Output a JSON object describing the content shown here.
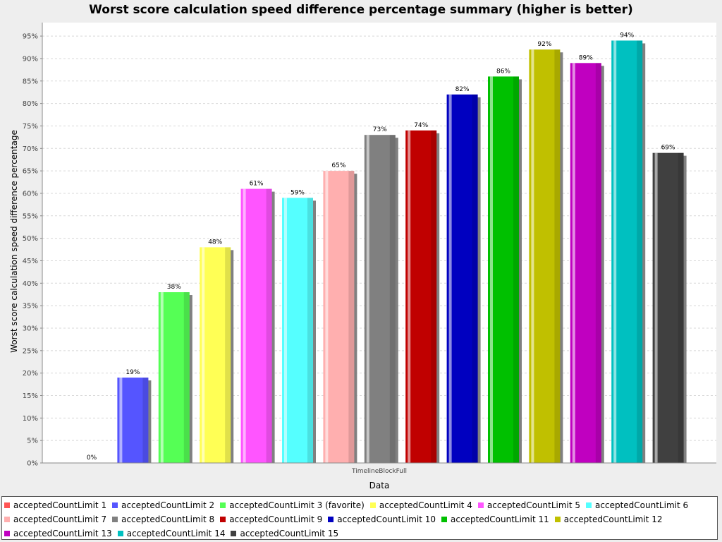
{
  "chart_data": {
    "type": "bar",
    "title": "Worst score calculation speed difference percentage summary (higher is better)",
    "xlabel": "Data",
    "ylabel": "Worst score calculation speed difference percentage",
    "categories": [
      "TimelineBlockFull"
    ],
    "ylim": [
      0,
      98
    ],
    "yticks": [
      "0%",
      "5%",
      "10%",
      "15%",
      "20%",
      "25%",
      "30%",
      "35%",
      "40%",
      "45%",
      "50%",
      "55%",
      "60%",
      "65%",
      "70%",
      "75%",
      "80%",
      "85%",
      "90%",
      "95%"
    ],
    "grid": true,
    "legend_position": "bottom",
    "series": [
      {
        "name": "acceptedCountLimit 1",
        "values": [
          0
        ],
        "label": "0%",
        "color": "#ff5555"
      },
      {
        "name": "acceptedCountLimit 2",
        "values": [
          19
        ],
        "label": "19%",
        "color": "#5555ff"
      },
      {
        "name": "acceptedCountLimit 3 (favorite)",
        "values": [
          38
        ],
        "label": "38%",
        "color": "#55ff55"
      },
      {
        "name": "acceptedCountLimit 4",
        "values": [
          48
        ],
        "label": "48%",
        "color": "#ffff55"
      },
      {
        "name": "acceptedCountLimit 5",
        "values": [
          61
        ],
        "label": "61%",
        "color": "#ff55ff"
      },
      {
        "name": "acceptedCountLimit 6",
        "values": [
          59
        ],
        "label": "59%",
        "color": "#55ffff"
      },
      {
        "name": "acceptedCountLimit 7",
        "values": [
          65
        ],
        "label": "65%",
        "color": "#ffafaf"
      },
      {
        "name": "acceptedCountLimit 8",
        "values": [
          73
        ],
        "label": "73%",
        "color": "#808080"
      },
      {
        "name": "acceptedCountLimit 9",
        "values": [
          74
        ],
        "label": "74%",
        "color": "#c00000"
      },
      {
        "name": "acceptedCountLimit 10",
        "values": [
          82
        ],
        "label": "82%",
        "color": "#0000c0"
      },
      {
        "name": "acceptedCountLimit 11",
        "values": [
          86
        ],
        "label": "86%",
        "color": "#00c000"
      },
      {
        "name": "acceptedCountLimit 12",
        "values": [
          92
        ],
        "label": "92%",
        "color": "#c0c000"
      },
      {
        "name": "acceptedCountLimit 13",
        "values": [
          89
        ],
        "label": "89%",
        "color": "#c000c0"
      },
      {
        "name": "acceptedCountLimit 14",
        "values": [
          94
        ],
        "label": "94%",
        "color": "#00c0c0"
      },
      {
        "name": "acceptedCountLimit 15",
        "values": [
          69
        ],
        "label": "69%",
        "color": "#404040"
      }
    ]
  }
}
